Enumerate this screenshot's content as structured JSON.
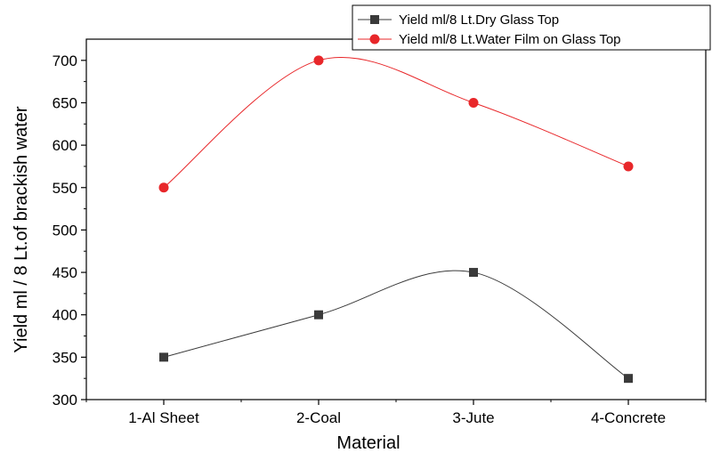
{
  "chart_data": {
    "type": "line",
    "categories": [
      "1-Al Sheet",
      "2-Coal",
      "3-Jute",
      "4-Concrete"
    ],
    "series": [
      {
        "name": "Yield ml/8 Lt.Dry Glass Top",
        "values": [
          350,
          400,
          450,
          325
        ],
        "color": "#3a3a3a",
        "marker": "square"
      },
      {
        "name": "Yield ml/8 Lt.Water Film on Glass Top",
        "values": [
          550,
          700,
          650,
          575
        ],
        "color": "#e8272a",
        "marker": "circle"
      }
    ],
    "xlabel": "Material",
    "ylabel": "Yield ml / 8 Lt.of brackish water",
    "ylim": [
      300,
      725
    ],
    "yticks": [
      300,
      350,
      400,
      450,
      500,
      550,
      600,
      650,
      700
    ],
    "grid": false,
    "legend": "top-right"
  }
}
